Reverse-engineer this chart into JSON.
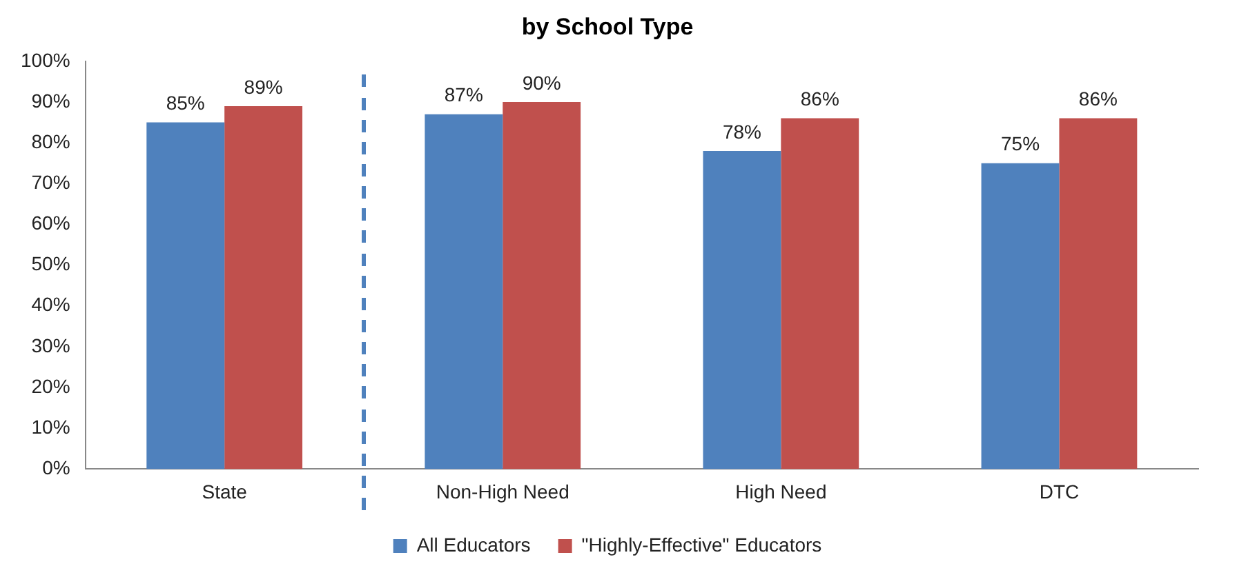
{
  "chart_data": {
    "type": "bar",
    "title": "by School Type",
    "categories": [
      "State",
      "Non-High Need",
      "High Need",
      "DTC"
    ],
    "series": [
      {
        "name": "All Educators",
        "color": "#4f81bd",
        "values": [
          85,
          87,
          78,
          75
        ]
      },
      {
        "name": "\"Highly-Effective\" Educators",
        "color": "#c0504d",
        "values": [
          89,
          90,
          86,
          86
        ]
      }
    ],
    "ylim": [
      0,
      100
    ],
    "yticks": [
      {
        "value": 0,
        "label": "0%"
      },
      {
        "value": 10,
        "label": "10%"
      },
      {
        "value": 20,
        "label": "20%"
      },
      {
        "value": 30,
        "label": "30%"
      },
      {
        "value": 40,
        "label": "40%"
      },
      {
        "value": 50,
        "label": "50%"
      },
      {
        "value": 60,
        "label": "60%"
      },
      {
        "value": 70,
        "label": "70%"
      },
      {
        "value": 80,
        "label": "80%"
      },
      {
        "value": 90,
        "label": "90%"
      },
      {
        "value": 100,
        "label": "100%"
      }
    ],
    "value_labels": [
      [
        "85%",
        "87%",
        "78%",
        "75%"
      ],
      [
        "89%",
        "90%",
        "86%",
        "86%"
      ]
    ],
    "grid": false,
    "legend": "bottom"
  }
}
